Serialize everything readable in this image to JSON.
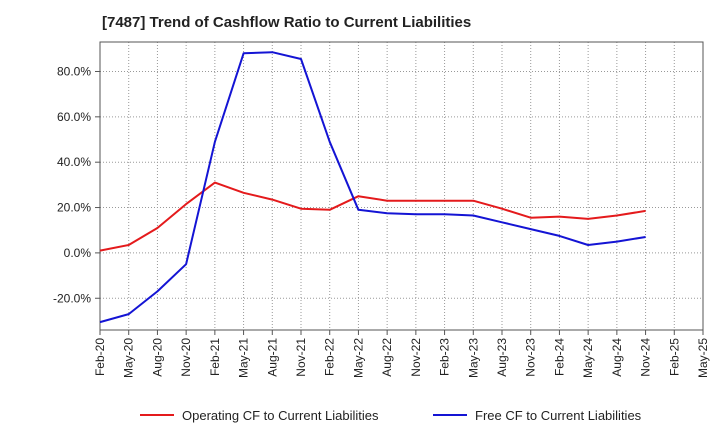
{
  "title": "[7487]  Trend of Cashflow Ratio to Current Liabilities",
  "chart_data": {
    "type": "line",
    "title": "[7487]  Trend of Cashflow Ratio to Current Liabilities",
    "xlabel": "",
    "ylabel": "",
    "x_ticks": [
      "Feb-20",
      "May-20",
      "Aug-20",
      "Nov-20",
      "Feb-21",
      "May-21",
      "Aug-21",
      "Nov-21",
      "Feb-22",
      "May-22",
      "Aug-22",
      "Nov-22",
      "Feb-23",
      "May-23",
      "Aug-23",
      "Nov-23",
      "Feb-24",
      "May-24",
      "Aug-24",
      "Nov-24",
      "Feb-25",
      "May-25"
    ],
    "y_ticks": [
      -20,
      0,
      20,
      40,
      60,
      80
    ],
    "y_tick_labels": [
      "-20.0%",
      "0.0%",
      "20.0%",
      "40.0%",
      "60.0%",
      "80.0%"
    ],
    "ylim": [
      -34,
      93
    ],
    "grid": true,
    "legend_position": "bottom",
    "series": [
      {
        "name": "Operating CF to Current Liabilities",
        "color": "#e41a1c",
        "points": [
          [
            "Feb-20",
            1.0
          ],
          [
            "May-20",
            3.5
          ],
          [
            "Aug-20",
            11.0
          ],
          [
            "Nov-20",
            21.5
          ],
          [
            "Feb-21",
            31.0
          ],
          [
            "May-21",
            26.5
          ],
          [
            "Aug-21",
            23.5
          ],
          [
            "Nov-21",
            19.5
          ],
          [
            "Feb-22",
            19.0
          ],
          [
            "May-22",
            25.0
          ],
          [
            "Aug-22",
            23.0
          ],
          [
            "Nov-22",
            23.0
          ],
          [
            "Feb-23",
            23.0
          ],
          [
            "May-23",
            23.0
          ],
          [
            "Aug-23",
            19.5
          ],
          [
            "Nov-23",
            15.5
          ],
          [
            "Feb-24",
            16.0
          ],
          [
            "May-24",
            15.0
          ],
          [
            "Aug-24",
            16.5
          ],
          [
            "Nov-24",
            18.5
          ]
        ]
      },
      {
        "name": "Free CF to Current Liabilities",
        "color": "#1414d4",
        "points": [
          [
            "Feb-20",
            -30.5
          ],
          [
            "May-20",
            -27.0
          ],
          [
            "Aug-20",
            -17.0
          ],
          [
            "Nov-20",
            -5.0
          ],
          [
            "Feb-21",
            49.0
          ],
          [
            "May-21",
            88.0
          ],
          [
            "Aug-21",
            88.5
          ],
          [
            "Nov-21",
            85.5
          ],
          [
            "Feb-22",
            49.0
          ],
          [
            "May-22",
            19.0
          ],
          [
            "Aug-22",
            17.5
          ],
          [
            "Nov-22",
            17.0
          ],
          [
            "Feb-23",
            17.0
          ],
          [
            "May-23",
            16.5
          ],
          [
            "Aug-23",
            13.5
          ],
          [
            "Nov-23",
            10.5
          ],
          [
            "Feb-24",
            7.5
          ],
          [
            "May-24",
            3.5
          ],
          [
            "Aug-24",
            5.0
          ],
          [
            "Nov-24",
            7.0
          ]
        ]
      }
    ]
  }
}
